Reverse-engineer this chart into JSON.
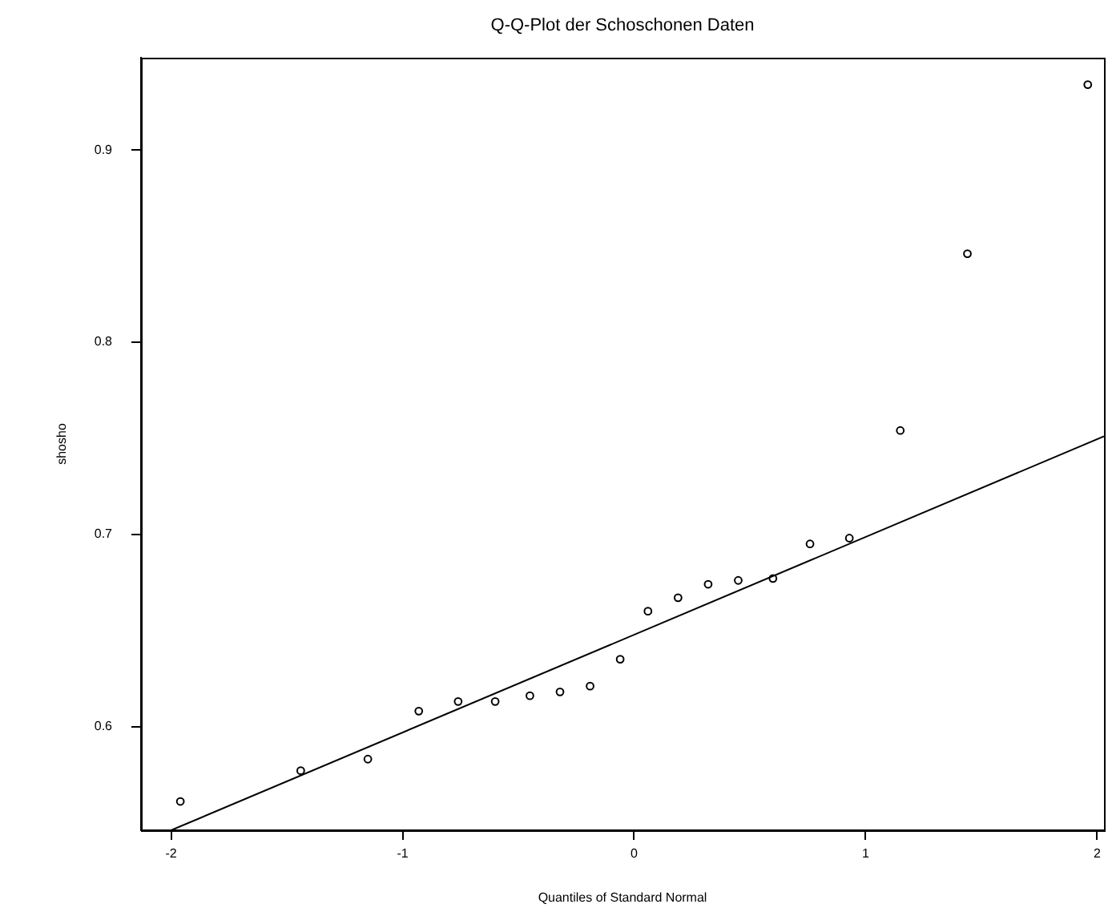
{
  "chart_data": {
    "type": "scatter",
    "title": "Q-Q-Plot der Schoschonen Daten",
    "xlabel": "Quantiles of Standard Normal",
    "ylabel": "shosho",
    "xlim": [
      -2.13,
      2.03
    ],
    "xticks": [
      -2,
      -1,
      0,
      1,
      2
    ],
    "ylim": [
      0.546,
      0.948
    ],
    "yticks": [
      0.6,
      0.7,
      0.8,
      0.9
    ],
    "grid": false,
    "legend": false,
    "series": [
      {
        "color": "#000000",
        "marker": "circle",
        "x": [
          -1.96,
          -1.44,
          -1.15,
          -0.93,
          -0.76,
          -0.6,
          -0.45,
          -0.32,
          -0.19,
          -0.06,
          0.06,
          0.19,
          0.32,
          0.45,
          0.6,
          0.76,
          0.93,
          1.15,
          1.44,
          1.96
        ],
        "values": [
          0.561,
          0.577,
          0.583,
          0.608,
          0.613,
          0.613,
          0.616,
          0.618,
          0.621,
          0.635,
          0.66,
          0.667,
          0.674,
          0.676,
          0.677,
          0.695,
          0.698,
          0.754,
          0.846,
          0.934
        ]
      },
      {
        "type": "line",
        "color": "#000000",
        "marker": "none",
        "x": [
          -2.0,
          2.03
        ],
        "values": [
          0.546,
          0.751
        ]
      }
    ]
  }
}
